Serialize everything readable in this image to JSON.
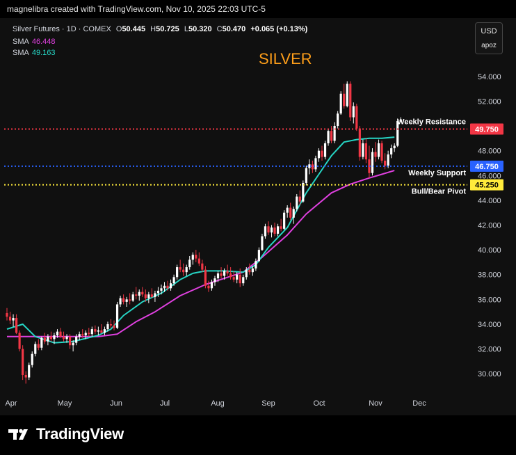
{
  "header": {
    "attribution": "magnelibra created with TradingView.com, Nov 10, 2025 22:03 UTC-5"
  },
  "legend": {
    "symbol": "Silver Futures · 1D · COMEX",
    "o_label": "O",
    "o_value": "50.445",
    "h_label": "H",
    "h_value": "50.725",
    "l_label": "L",
    "l_value": "50.320",
    "c_label": "C",
    "c_value": "50.470",
    "change": "+0.065 (+0.13%)",
    "sma1_label": "SMA",
    "sma1_value": "46.448",
    "sma2_label": "SMA",
    "sma2_value": "49.163"
  },
  "currency_box": {
    "currency": "USD",
    "mode": "apoz"
  },
  "footer": {
    "brand": "TradingView"
  },
  "colors": {
    "bull": "#ffffff",
    "bear": "#f23645",
    "sma_fast": "#26d6c5",
    "sma_slow": "#e040e0",
    "resistance": "#f23645",
    "support": "#2962ff",
    "pivot": "#ffeb3b",
    "title": "#ff9f1a"
  },
  "chart_data": {
    "type": "candlestick",
    "title": "SILVER",
    "ylim": [
      29.0,
      55.0
    ],
    "y_ticks": [
      "30.000",
      "32.000",
      "34.000",
      "36.000",
      "38.000",
      "40.000",
      "42.000",
      "44.000",
      "46.000",
      "48.000",
      "50.000",
      "52.000",
      "54.000"
    ],
    "x_ticks": [
      "Apr",
      "May",
      "Jun",
      "Jul",
      "Aug",
      "Sep",
      "Oct",
      "Nov",
      "Dec"
    ],
    "levels": [
      {
        "name": "Weekly Resistance",
        "value": 49.75,
        "label": "49.750",
        "color": "#f23645"
      },
      {
        "name": "Weekly Support",
        "value": 46.75,
        "label": "46.750",
        "color": "#2962ff"
      },
      {
        "name": "Bull/Bear Pivot",
        "value": 45.25,
        "label": "45.250",
        "color": "#ffeb3b"
      }
    ],
    "candles": [
      [
        1,
        34.9,
        35.3,
        34.3,
        34.6
      ],
      [
        2,
        34.6,
        35.0,
        34.0,
        34.3
      ],
      [
        3,
        34.3,
        34.8,
        33.8,
        34.5
      ],
      [
        4,
        34.5,
        34.8,
        33.2,
        33.3
      ],
      [
        5,
        33.3,
        33.5,
        31.8,
        32.0
      ],
      [
        6,
        32.0,
        32.3,
        29.5,
        29.9
      ],
      [
        7,
        29.9,
        30.2,
        29.2,
        29.7
      ],
      [
        8,
        29.7,
        30.9,
        29.5,
        30.7
      ],
      [
        9,
        30.7,
        31.8,
        30.5,
        31.6
      ],
      [
        10,
        31.6,
        32.6,
        31.4,
        32.4
      ],
      [
        11,
        32.4,
        32.8,
        31.9,
        32.1
      ],
      [
        12,
        32.1,
        33.0,
        31.9,
        32.9
      ],
      [
        13,
        32.9,
        33.3,
        32.4,
        32.6
      ],
      [
        14,
        32.6,
        33.2,
        32.3,
        33.0
      ],
      [
        15,
        33.0,
        33.4,
        32.6,
        32.8
      ],
      [
        16,
        32.8,
        33.3,
        32.4,
        33.1
      ],
      [
        17,
        33.1,
        33.6,
        32.9,
        33.4
      ],
      [
        18,
        33.4,
        33.7,
        32.9,
        33.0
      ],
      [
        19,
        33.0,
        33.4,
        32.6,
        32.8
      ],
      [
        20,
        32.8,
        33.2,
        32.5,
        33.0
      ],
      [
        21,
        33.0,
        33.2,
        32.0,
        32.3
      ],
      [
        22,
        32.3,
        32.7,
        31.8,
        32.5
      ],
      [
        23,
        32.5,
        33.2,
        32.3,
        33.0
      ],
      [
        24,
        33.0,
        33.4,
        32.7,
        33.2
      ],
      [
        25,
        33.2,
        33.6,
        32.9,
        33.1
      ],
      [
        26,
        33.1,
        33.5,
        32.8,
        33.3
      ],
      [
        27,
        33.3,
        33.7,
        33.0,
        33.2
      ],
      [
        28,
        33.2,
        33.8,
        33.0,
        33.6
      ],
      [
        29,
        33.6,
        33.9,
        33.2,
        33.4
      ],
      [
        30,
        33.4,
        33.8,
        33.1,
        33.5
      ],
      [
        31,
        33.5,
        34.0,
        33.3,
        33.3
      ],
      [
        32,
        33.3,
        33.8,
        33.1,
        33.6
      ],
      [
        33,
        33.6,
        34.2,
        33.4,
        34.0
      ],
      [
        34,
        34.0,
        34.4,
        33.7,
        33.9
      ],
      [
        35,
        33.9,
        34.3,
        33.5,
        33.7
      ],
      [
        36,
        33.7,
        35.8,
        33.6,
        35.6
      ],
      [
        37,
        35.6,
        36.3,
        35.4,
        36.1
      ],
      [
        38,
        36.1,
        36.4,
        35.6,
        35.8
      ],
      [
        39,
        35.8,
        36.2,
        35.4,
        36.0
      ],
      [
        40,
        36.0,
        36.5,
        35.6,
        35.9
      ],
      [
        41,
        35.9,
        36.6,
        35.8,
        36.4
      ],
      [
        42,
        36.4,
        37.0,
        36.0,
        36.3
      ],
      [
        43,
        36.3,
        36.8,
        35.9,
        36.6
      ],
      [
        44,
        36.6,
        37.0,
        36.2,
        36.4
      ],
      [
        45,
        36.4,
        36.8,
        35.8,
        36.1
      ],
      [
        46,
        36.1,
        36.6,
        35.7,
        36.4
      ],
      [
        47,
        36.4,
        36.9,
        36.1,
        36.2
      ],
      [
        48,
        36.2,
        36.7,
        35.8,
        36.5
      ],
      [
        49,
        36.5,
        37.0,
        36.2,
        36.7
      ],
      [
        50,
        36.7,
        37.2,
        36.4,
        36.9
      ],
      [
        51,
        36.9,
        37.4,
        36.6,
        37.1
      ],
      [
        52,
        37.1,
        37.5,
        36.7,
        36.9
      ],
      [
        53,
        36.9,
        37.6,
        36.7,
        37.3
      ],
      [
        54,
        37.3,
        38.0,
        37.1,
        37.8
      ],
      [
        55,
        37.8,
        38.8,
        37.6,
        38.6
      ],
      [
        56,
        38.6,
        39.2,
        38.2,
        38.4
      ],
      [
        57,
        38.4,
        38.9,
        37.9,
        38.2
      ],
      [
        58,
        38.2,
        38.8,
        37.9,
        38.6
      ],
      [
        59,
        38.6,
        39.5,
        38.4,
        39.2
      ],
      [
        60,
        39.2,
        39.8,
        38.8,
        39.6
      ],
      [
        61,
        39.6,
        40.0,
        39.0,
        39.3
      ],
      [
        62,
        39.3,
        39.8,
        38.7,
        38.9
      ],
      [
        63,
        38.9,
        39.2,
        38.2,
        38.4
      ],
      [
        64,
        38.4,
        38.7,
        36.9,
        37.1
      ],
      [
        65,
        37.1,
        37.5,
        36.6,
        36.9
      ],
      [
        66,
        36.9,
        37.6,
        36.7,
        37.4
      ],
      [
        67,
        37.4,
        37.9,
        37.1,
        37.7
      ],
      [
        68,
        37.7,
        38.3,
        37.4,
        38.1
      ],
      [
        69,
        38.1,
        38.6,
        37.7,
        37.9
      ],
      [
        70,
        37.9,
        38.5,
        37.6,
        38.3
      ],
      [
        71,
        38.3,
        38.8,
        37.9,
        38.1
      ],
      [
        72,
        38.1,
        38.6,
        37.6,
        37.8
      ],
      [
        73,
        37.8,
        38.3,
        37.4,
        37.6
      ],
      [
        74,
        37.6,
        38.2,
        37.3,
        38.0
      ],
      [
        75,
        38.0,
        38.5,
        37.0,
        37.3
      ],
      [
        76,
        37.3,
        38.0,
        37.1,
        37.8
      ],
      [
        77,
        37.8,
        38.6,
        37.6,
        38.4
      ],
      [
        78,
        38.4,
        38.9,
        38.0,
        38.2
      ],
      [
        79,
        38.2,
        38.7,
        37.9,
        38.5
      ],
      [
        80,
        38.5,
        39.3,
        38.3,
        39.1
      ],
      [
        81,
        39.1,
        40.2,
        39.0,
        40.0
      ],
      [
        82,
        40.0,
        41.3,
        39.9,
        41.1
      ],
      [
        83,
        41.1,
        42.1,
        40.9,
        41.9
      ],
      [
        84,
        41.9,
        42.3,
        41.2,
        41.4
      ],
      [
        85,
        41.4,
        42.0,
        41.0,
        41.8
      ],
      [
        86,
        41.8,
        42.2,
        41.1,
        41.3
      ],
      [
        87,
        41.3,
        42.1,
        41.1,
        41.9
      ],
      [
        88,
        41.9,
        42.5,
        41.5,
        41.7
      ],
      [
        89,
        41.7,
        43.2,
        41.6,
        43.0
      ],
      [
        90,
        43.0,
        43.6,
        42.6,
        43.4
      ],
      [
        91,
        43.4,
        43.8,
        42.4,
        42.6
      ],
      [
        92,
        42.6,
        43.5,
        42.1,
        43.3
      ],
      [
        93,
        43.3,
        44.5,
        43.1,
        44.3
      ],
      [
        94,
        44.3,
        44.8,
        43.6,
        43.9
      ],
      [
        95,
        43.9,
        45.6,
        43.8,
        45.4
      ],
      [
        96,
        45.4,
        46.8,
        45.2,
        46.6
      ],
      [
        97,
        46.6,
        47.3,
        46.1,
        46.9
      ],
      [
        98,
        46.9,
        47.2,
        46.2,
        46.5
      ],
      [
        99,
        46.5,
        47.6,
        46.3,
        47.4
      ],
      [
        100,
        47.4,
        48.2,
        47.1,
        48.0
      ],
      [
        101,
        48.0,
        48.4,
        47.2,
        47.5
      ],
      [
        102,
        47.5,
        48.8,
        47.3,
        48.6
      ],
      [
        103,
        48.6,
        49.8,
        48.4,
        49.6
      ],
      [
        104,
        49.6,
        50.0,
        48.6,
        48.8
      ],
      [
        105,
        48.8,
        50.3,
        48.6,
        50.0
      ],
      [
        106,
        50.0,
        51.2,
        49.8,
        51.0
      ],
      [
        107,
        51.0,
        52.8,
        50.9,
        52.6
      ],
      [
        108,
        52.6,
        53.4,
        51.4,
        51.6
      ],
      [
        109,
        51.6,
        53.6,
        51.5,
        53.4
      ],
      [
        110,
        53.4,
        53.6,
        50.4,
        50.7
      ],
      [
        111,
        50.7,
        51.9,
        50.2,
        51.6
      ],
      [
        112,
        51.6,
        51.8,
        49.6,
        49.8
      ],
      [
        113,
        49.8,
        50.0,
        47.2,
        47.5
      ],
      [
        114,
        47.5,
        48.9,
        47.3,
        48.6
      ],
      [
        115,
        48.6,
        49.0,
        47.0,
        47.3
      ],
      [
        116,
        47.3,
        48.4,
        45.8,
        46.2
      ],
      [
        117,
        46.2,
        48.2,
        46.0,
        47.9
      ],
      [
        118,
        47.9,
        48.7,
        47.1,
        47.5
      ],
      [
        119,
        47.5,
        48.9,
        47.3,
        48.6
      ],
      [
        120,
        48.6,
        48.8,
        47.0,
        47.2
      ],
      [
        121,
        47.2,
        47.8,
        46.5,
        46.8
      ],
      [
        122,
        46.8,
        48.0,
        46.6,
        47.7
      ],
      [
        123,
        47.7,
        48.5,
        47.4,
        48.2
      ],
      [
        124,
        48.2,
        48.6,
        47.9,
        48.4
      ],
      [
        125,
        48.4,
        50.6,
        48.3,
        50.4
      ],
      [
        126,
        50.4,
        50.7,
        50.3,
        50.5
      ]
    ],
    "sma_fast": [
      [
        1,
        33.6
      ],
      [
        6,
        34.0
      ],
      [
        10,
        33.0
      ],
      [
        16,
        32.5
      ],
      [
        22,
        32.6
      ],
      [
        30,
        33.1
      ],
      [
        34,
        33.6
      ],
      [
        38,
        34.7
      ],
      [
        44,
        35.8
      ],
      [
        50,
        36.5
      ],
      [
        56,
        37.6
      ],
      [
        60,
        38.1
      ],
      [
        64,
        38.3
      ],
      [
        70,
        38.3
      ],
      [
        76,
        38.2
      ],
      [
        80,
        38.8
      ],
      [
        84,
        40.2
      ],
      [
        90,
        41.8
      ],
      [
        96,
        44.6
      ],
      [
        100,
        46.1
      ],
      [
        104,
        47.6
      ],
      [
        108,
        48.7
      ],
      [
        112,
        48.9
      ],
      [
        116,
        49.0
      ],
      [
        120,
        49.0
      ],
      [
        124,
        49.1
      ]
    ],
    "sma_slow": [
      [
        1,
        33.0
      ],
      [
        10,
        33.0
      ],
      [
        20,
        33.0
      ],
      [
        30,
        33.0
      ],
      [
        36,
        33.2
      ],
      [
        42,
        34.2
      ],
      [
        48,
        35.0
      ],
      [
        56,
        36.3
      ],
      [
        64,
        37.2
      ],
      [
        70,
        37.7
      ],
      [
        76,
        38.2
      ],
      [
        82,
        39.4
      ],
      [
        90,
        41.2
      ],
      [
        96,
        42.9
      ],
      [
        104,
        44.6
      ],
      [
        110,
        45.3
      ],
      [
        116,
        45.8
      ],
      [
        120,
        46.1
      ],
      [
        124,
        46.4
      ]
    ]
  }
}
